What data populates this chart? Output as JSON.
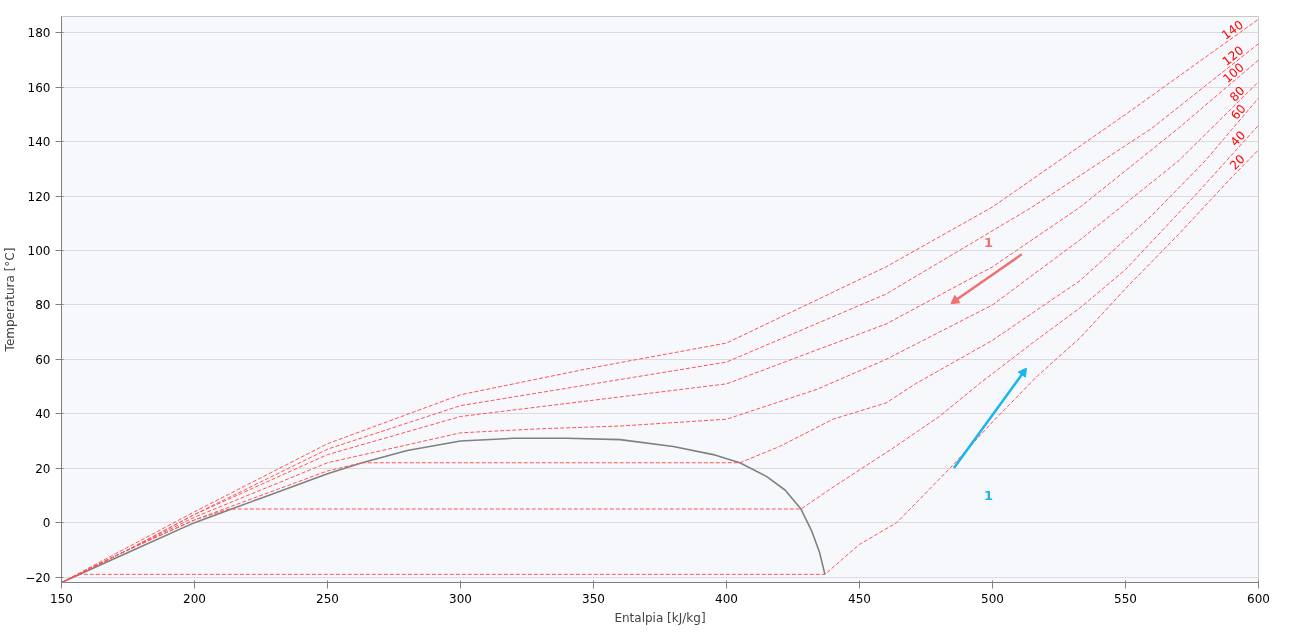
{
  "chart_data": {
    "type": "line",
    "xlabel": "Entalpia [kJ/kg]",
    "ylabel": "Temperatura [°C]",
    "xlim": [
      150,
      600
    ],
    "ylim": [
      -22,
      186
    ],
    "xticks": [
      150,
      200,
      250,
      300,
      350,
      400,
      450,
      500,
      550,
      600
    ],
    "yticks": [
      -20,
      0,
      20,
      40,
      60,
      80,
      100,
      120,
      140,
      160,
      180
    ],
    "grid": "y",
    "line_style": "dashed",
    "series": [
      {
        "color": "#808080",
        "line_style": "solid",
        "x": [
          150,
          175,
          200,
          225,
          250,
          263,
          280,
          300,
          320,
          340,
          360,
          380,
          395,
          405,
          415,
          422,
          428,
          432,
          435,
          437
        ],
        "values": [
          -22,
          -11,
          0,
          9,
          18,
          22,
          26.5,
          30,
          31,
          31,
          30.5,
          28,
          25,
          22,
          17,
          12,
          5,
          -3,
          -11,
          -19
        ]
      },
      {
        "name": "20",
        "color": "#ff5555",
        "x": [
          150,
          157,
          437,
          450,
          464,
          484,
          500,
          517,
          533,
          550,
          570,
          590,
          600
        ],
        "values": [
          -22,
          -19,
          -19,
          -8,
          0,
          20,
          37,
          54,
          68,
          86,
          106,
          127,
          137
        ]
      },
      {
        "name": "40",
        "color": "#ff5555",
        "x": [
          150,
          175,
          200,
          213,
          428,
          440,
          462,
          480,
          495,
          515,
          533,
          550,
          575,
          600
        ],
        "values": [
          -22,
          -10,
          1,
          5,
          5,
          13,
          27,
          39,
          51,
          66,
          79,
          93,
          119,
          146
        ]
      },
      {
        "name": "60",
        "color": "#ff5555",
        "x": [
          150,
          175,
          200,
          250,
          263,
          405,
          420,
          440,
          460,
          471,
          500,
          533,
          560,
          580,
          600
        ],
        "values": [
          -22,
          -10,
          1,
          19,
          22,
          22,
          28,
          38,
          44,
          51,
          67,
          89,
          113,
          133,
          156
        ]
      },
      {
        "name": "80",
        "color": "#ff5555",
        "x": [
          150,
          175,
          200,
          250,
          300,
          330,
          360,
          400,
          434,
          460,
          500,
          533,
          570,
          600
        ],
        "values": [
          -22,
          -10,
          2,
          22,
          33,
          34.5,
          35.5,
          38,
          49,
          60,
          80,
          104,
          133,
          162
        ]
      },
      {
        "name": "100",
        "color": "#ff5555",
        "x": [
          150,
          175,
          200,
          250,
          300,
          350,
          400,
          460,
          500,
          533,
          570,
          600
        ],
        "values": [
          -22,
          -10,
          3,
          25,
          39,
          45,
          51,
          73,
          94,
          116,
          145,
          170
        ]
      },
      {
        "name": "120",
        "color": "#ff5555",
        "x": [
          150,
          175,
          200,
          250,
          300,
          350,
          400,
          460,
          515,
          560,
          600
        ],
        "values": [
          -22,
          -10,
          3,
          27,
          43,
          51,
          59,
          84,
          116,
          145,
          176
        ]
      },
      {
        "name": "140",
        "color": "#ff5555",
        "x": [
          150,
          175,
          200,
          250,
          300,
          350,
          400,
          460,
          500,
          550,
          600
        ],
        "values": [
          -22,
          -9,
          4,
          29,
          47,
          57,
          66,
          94,
          116,
          150,
          185
        ]
      },
      {
        "color": "#f07070",
        "line_style": "solid",
        "x": [
          511,
          486
        ],
        "values": [
          98.6,
          81.6
        ]
      },
      {
        "color": "#1ab4ef",
        "line_style": "solid",
        "x": [
          485.5,
          511.6
        ],
        "values": [
          20.1,
          55.2
        ]
      }
    ],
    "annotations": [
      "1",
      "1"
    ]
  }
}
